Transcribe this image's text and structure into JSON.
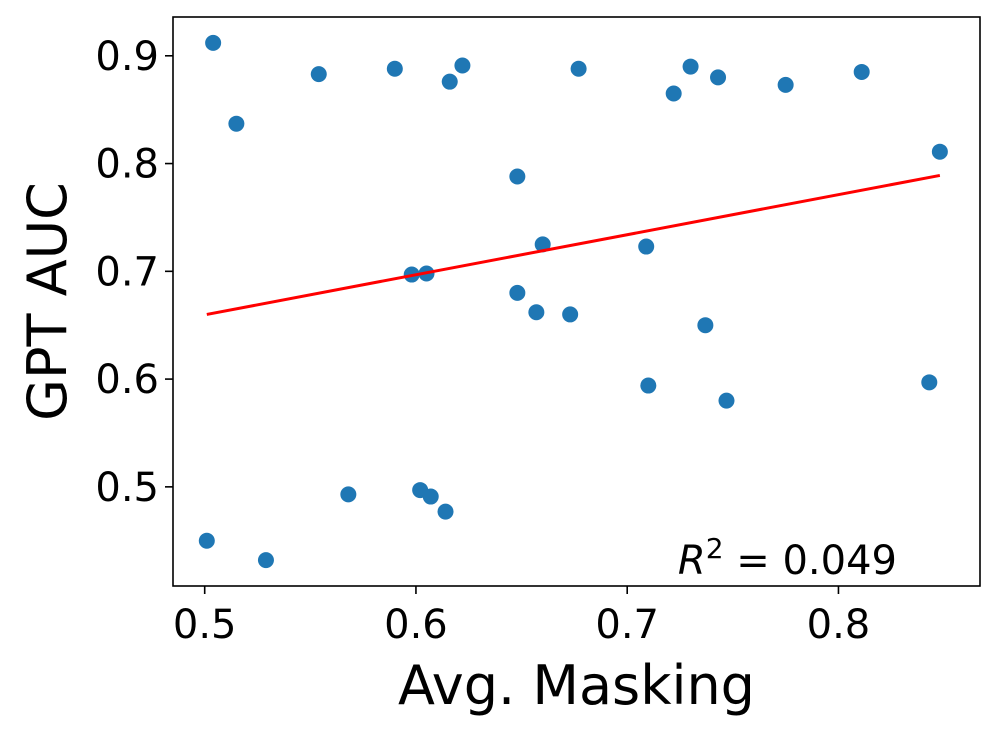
{
  "chart_data": {
    "type": "scatter",
    "xlabel": "Avg. Masking",
    "ylabel": "GPT AUC",
    "xlim": [
      0.485,
      0.867
    ],
    "ylim": [
      0.408,
      0.936
    ],
    "xticks": [
      {
        "value": 0.5,
        "label": "0.5"
      },
      {
        "value": 0.6,
        "label": "0.6"
      },
      {
        "value": 0.7,
        "label": "0.7"
      },
      {
        "value": 0.8,
        "label": "0.8"
      }
    ],
    "yticks": [
      {
        "value": 0.5,
        "label": "0.5"
      },
      {
        "value": 0.6,
        "label": "0.6"
      },
      {
        "value": 0.7,
        "label": "0.7"
      },
      {
        "value": 0.8,
        "label": "0.8"
      },
      {
        "value": 0.9,
        "label": "0.9"
      }
    ],
    "grid": false,
    "point_color": "#1f77b4",
    "fit_color": "#ff0000",
    "points": [
      {
        "x": 0.504,
        "y": 0.912
      },
      {
        "x": 0.515,
        "y": 0.837
      },
      {
        "x": 0.554,
        "y": 0.883
      },
      {
        "x": 0.59,
        "y": 0.888
      },
      {
        "x": 0.616,
        "y": 0.876
      },
      {
        "x": 0.622,
        "y": 0.891
      },
      {
        "x": 0.677,
        "y": 0.888
      },
      {
        "x": 0.722,
        "y": 0.865
      },
      {
        "x": 0.73,
        "y": 0.89
      },
      {
        "x": 0.743,
        "y": 0.88
      },
      {
        "x": 0.775,
        "y": 0.873
      },
      {
        "x": 0.811,
        "y": 0.885
      },
      {
        "x": 0.848,
        "y": 0.811
      },
      {
        "x": 0.648,
        "y": 0.788
      },
      {
        "x": 0.66,
        "y": 0.725
      },
      {
        "x": 0.709,
        "y": 0.723
      },
      {
        "x": 0.598,
        "y": 0.697
      },
      {
        "x": 0.605,
        "y": 0.698
      },
      {
        "x": 0.648,
        "y": 0.68
      },
      {
        "x": 0.657,
        "y": 0.662
      },
      {
        "x": 0.673,
        "y": 0.66
      },
      {
        "x": 0.737,
        "y": 0.65
      },
      {
        "x": 0.71,
        "y": 0.594
      },
      {
        "x": 0.747,
        "y": 0.58
      },
      {
        "x": 0.843,
        "y": 0.597
      },
      {
        "x": 0.568,
        "y": 0.493
      },
      {
        "x": 0.602,
        "y": 0.497
      },
      {
        "x": 0.607,
        "y": 0.491
      },
      {
        "x": 0.614,
        "y": 0.477
      },
      {
        "x": 0.501,
        "y": 0.45
      },
      {
        "x": 0.529,
        "y": 0.432
      }
    ],
    "fit_line": {
      "x": [
        0.501,
        0.848
      ],
      "y": [
        0.66,
        0.789
      ]
    },
    "annotation": {
      "prefix": "R",
      "sup": "2",
      "suffix": " = 0.049"
    }
  }
}
